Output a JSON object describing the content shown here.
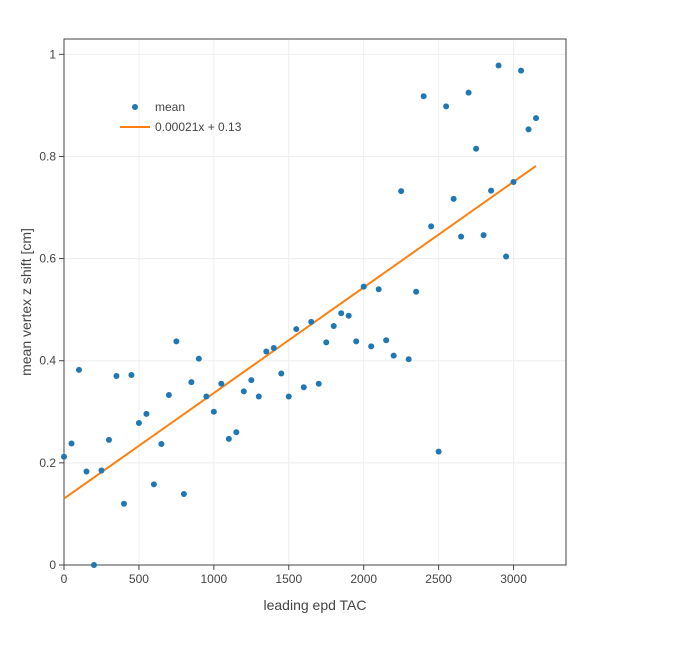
{
  "chart_data": {
    "type": "scatter",
    "xlabel": "leading epd TAC",
    "ylabel": "mean vertex z shift [cm]",
    "xlim": [
      0,
      3350
    ],
    "ylim": [
      0,
      1.03
    ],
    "xticks": [
      0,
      500,
      1000,
      1500,
      2000,
      2500,
      3000
    ],
    "xtick_labels": [
      "0",
      "500",
      "1000",
      "1500",
      "2000",
      "2500",
      "3000"
    ],
    "yticks": [
      0,
      0.2,
      0.4,
      0.6,
      0.8,
      1
    ],
    "ytick_labels": [
      "0",
      "0.2",
      "0.4",
      "0.6",
      "0.8",
      "1"
    ],
    "grid": true,
    "legend_position": "top-left",
    "colors": {
      "points": "#1f77b4",
      "fit": "#ff7f0e"
    },
    "series": [
      {
        "name": "mean",
        "mode": "markers",
        "x": [
          0,
          50,
          100,
          150,
          200,
          250,
          300,
          350,
          400,
          450,
          500,
          550,
          600,
          650,
          700,
          750,
          800,
          850,
          900,
          950,
          1000,
          1050,
          1100,
          1150,
          1200,
          1250,
          1300,
          1350,
          1400,
          1450,
          1500,
          1550,
          1600,
          1650,
          1700,
          1750,
          1800,
          1850,
          1900,
          1950,
          2000,
          2050,
          2100,
          2150,
          2200,
          2250,
          2300,
          2350,
          2400,
          2450,
          2500,
          2550,
          2600,
          2650,
          2700,
          2750,
          2800,
          2850,
          2900,
          2950,
          3000,
          3050,
          3100,
          3150
        ],
        "y": [
          0.212,
          0.238,
          0.382,
          0.183,
          0.0,
          0.185,
          0.245,
          0.37,
          0.12,
          0.372,
          0.278,
          0.296,
          0.158,
          0.237,
          0.333,
          0.438,
          0.139,
          0.358,
          0.404,
          0.33,
          0.3,
          0.355,
          0.247,
          0.26,
          0.34,
          0.362,
          0.33,
          0.418,
          0.425,
          0.375,
          0.33,
          0.462,
          0.348,
          0.476,
          0.355,
          0.436,
          0.468,
          0.493,
          0.488,
          0.438,
          0.545,
          0.428,
          0.54,
          0.44,
          0.41,
          0.732,
          0.403,
          0.535,
          0.918,
          0.663,
          0.222,
          0.898,
          0.717,
          0.643,
          0.925,
          0.815,
          0.646,
          0.733,
          0.978,
          0.604,
          0.75,
          0.968,
          0.853,
          0.875
        ]
      },
      {
        "name": "0.00021x + 0.13",
        "mode": "lines",
        "x": [
          0,
          3150
        ],
        "y": [
          0.13,
          0.7815
        ]
      }
    ]
  }
}
